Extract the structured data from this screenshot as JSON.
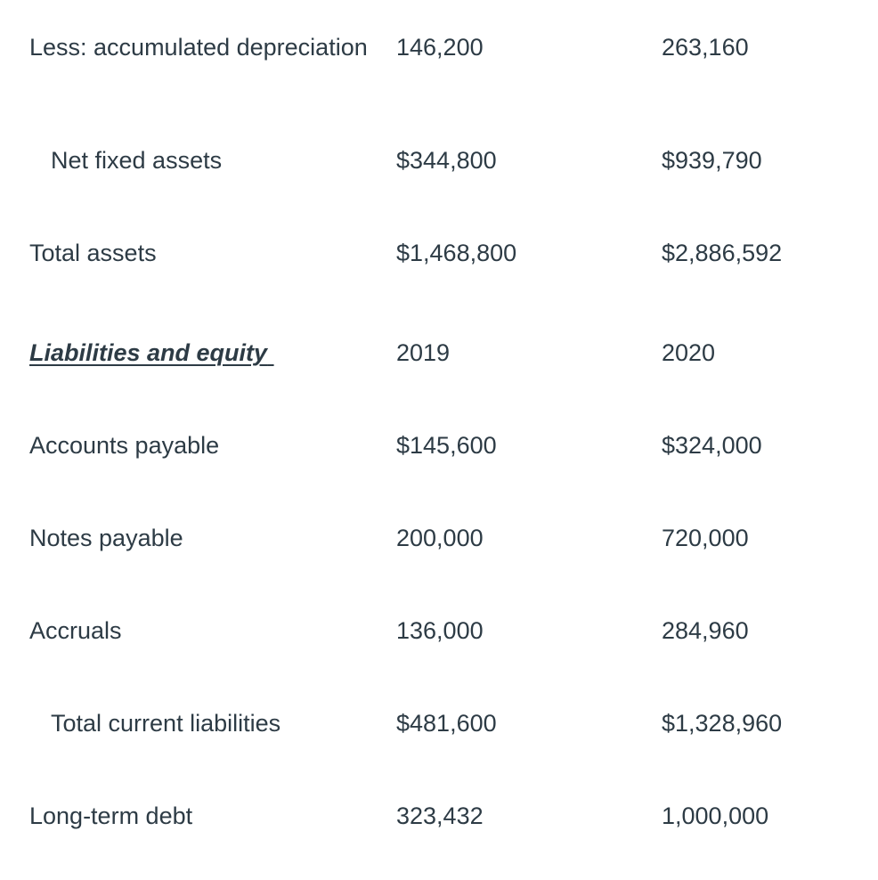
{
  "colors": {
    "text": "#2d3b45",
    "background": "#ffffff"
  },
  "table": {
    "description": "Balance sheet excerpt with 2019 and 2020 columns",
    "year_headers": [
      "2019",
      "2020"
    ],
    "rows": [
      {
        "label": "Less: accumulated depreciation",
        "y2019": "146,200",
        "y2020": "263,160"
      },
      {
        "label": "Net fixed assets",
        "y2019": "$344,800",
        "y2020": "$939,790"
      },
      {
        "label": "Total assets",
        "y2019": "$1,468,800",
        "y2020": "$2,886,592"
      },
      {
        "label": "Liabilities and equity",
        "y2019": "2019",
        "y2020": "2020"
      },
      {
        "label": "Accounts payable",
        "y2019": "$145,600",
        "y2020": "$324,000"
      },
      {
        "label": "Notes payable",
        "y2019": "200,000",
        "y2020": "720,000"
      },
      {
        "label": "Accruals",
        "y2019": "136,000",
        "y2020": "284,960"
      },
      {
        "label": "Total current liabilities",
        "y2019": "$481,600",
        "y2020": "$1,328,960"
      },
      {
        "label": "Long-term debt",
        "y2019": "323,432",
        "y2020": "1,000,000"
      }
    ]
  }
}
